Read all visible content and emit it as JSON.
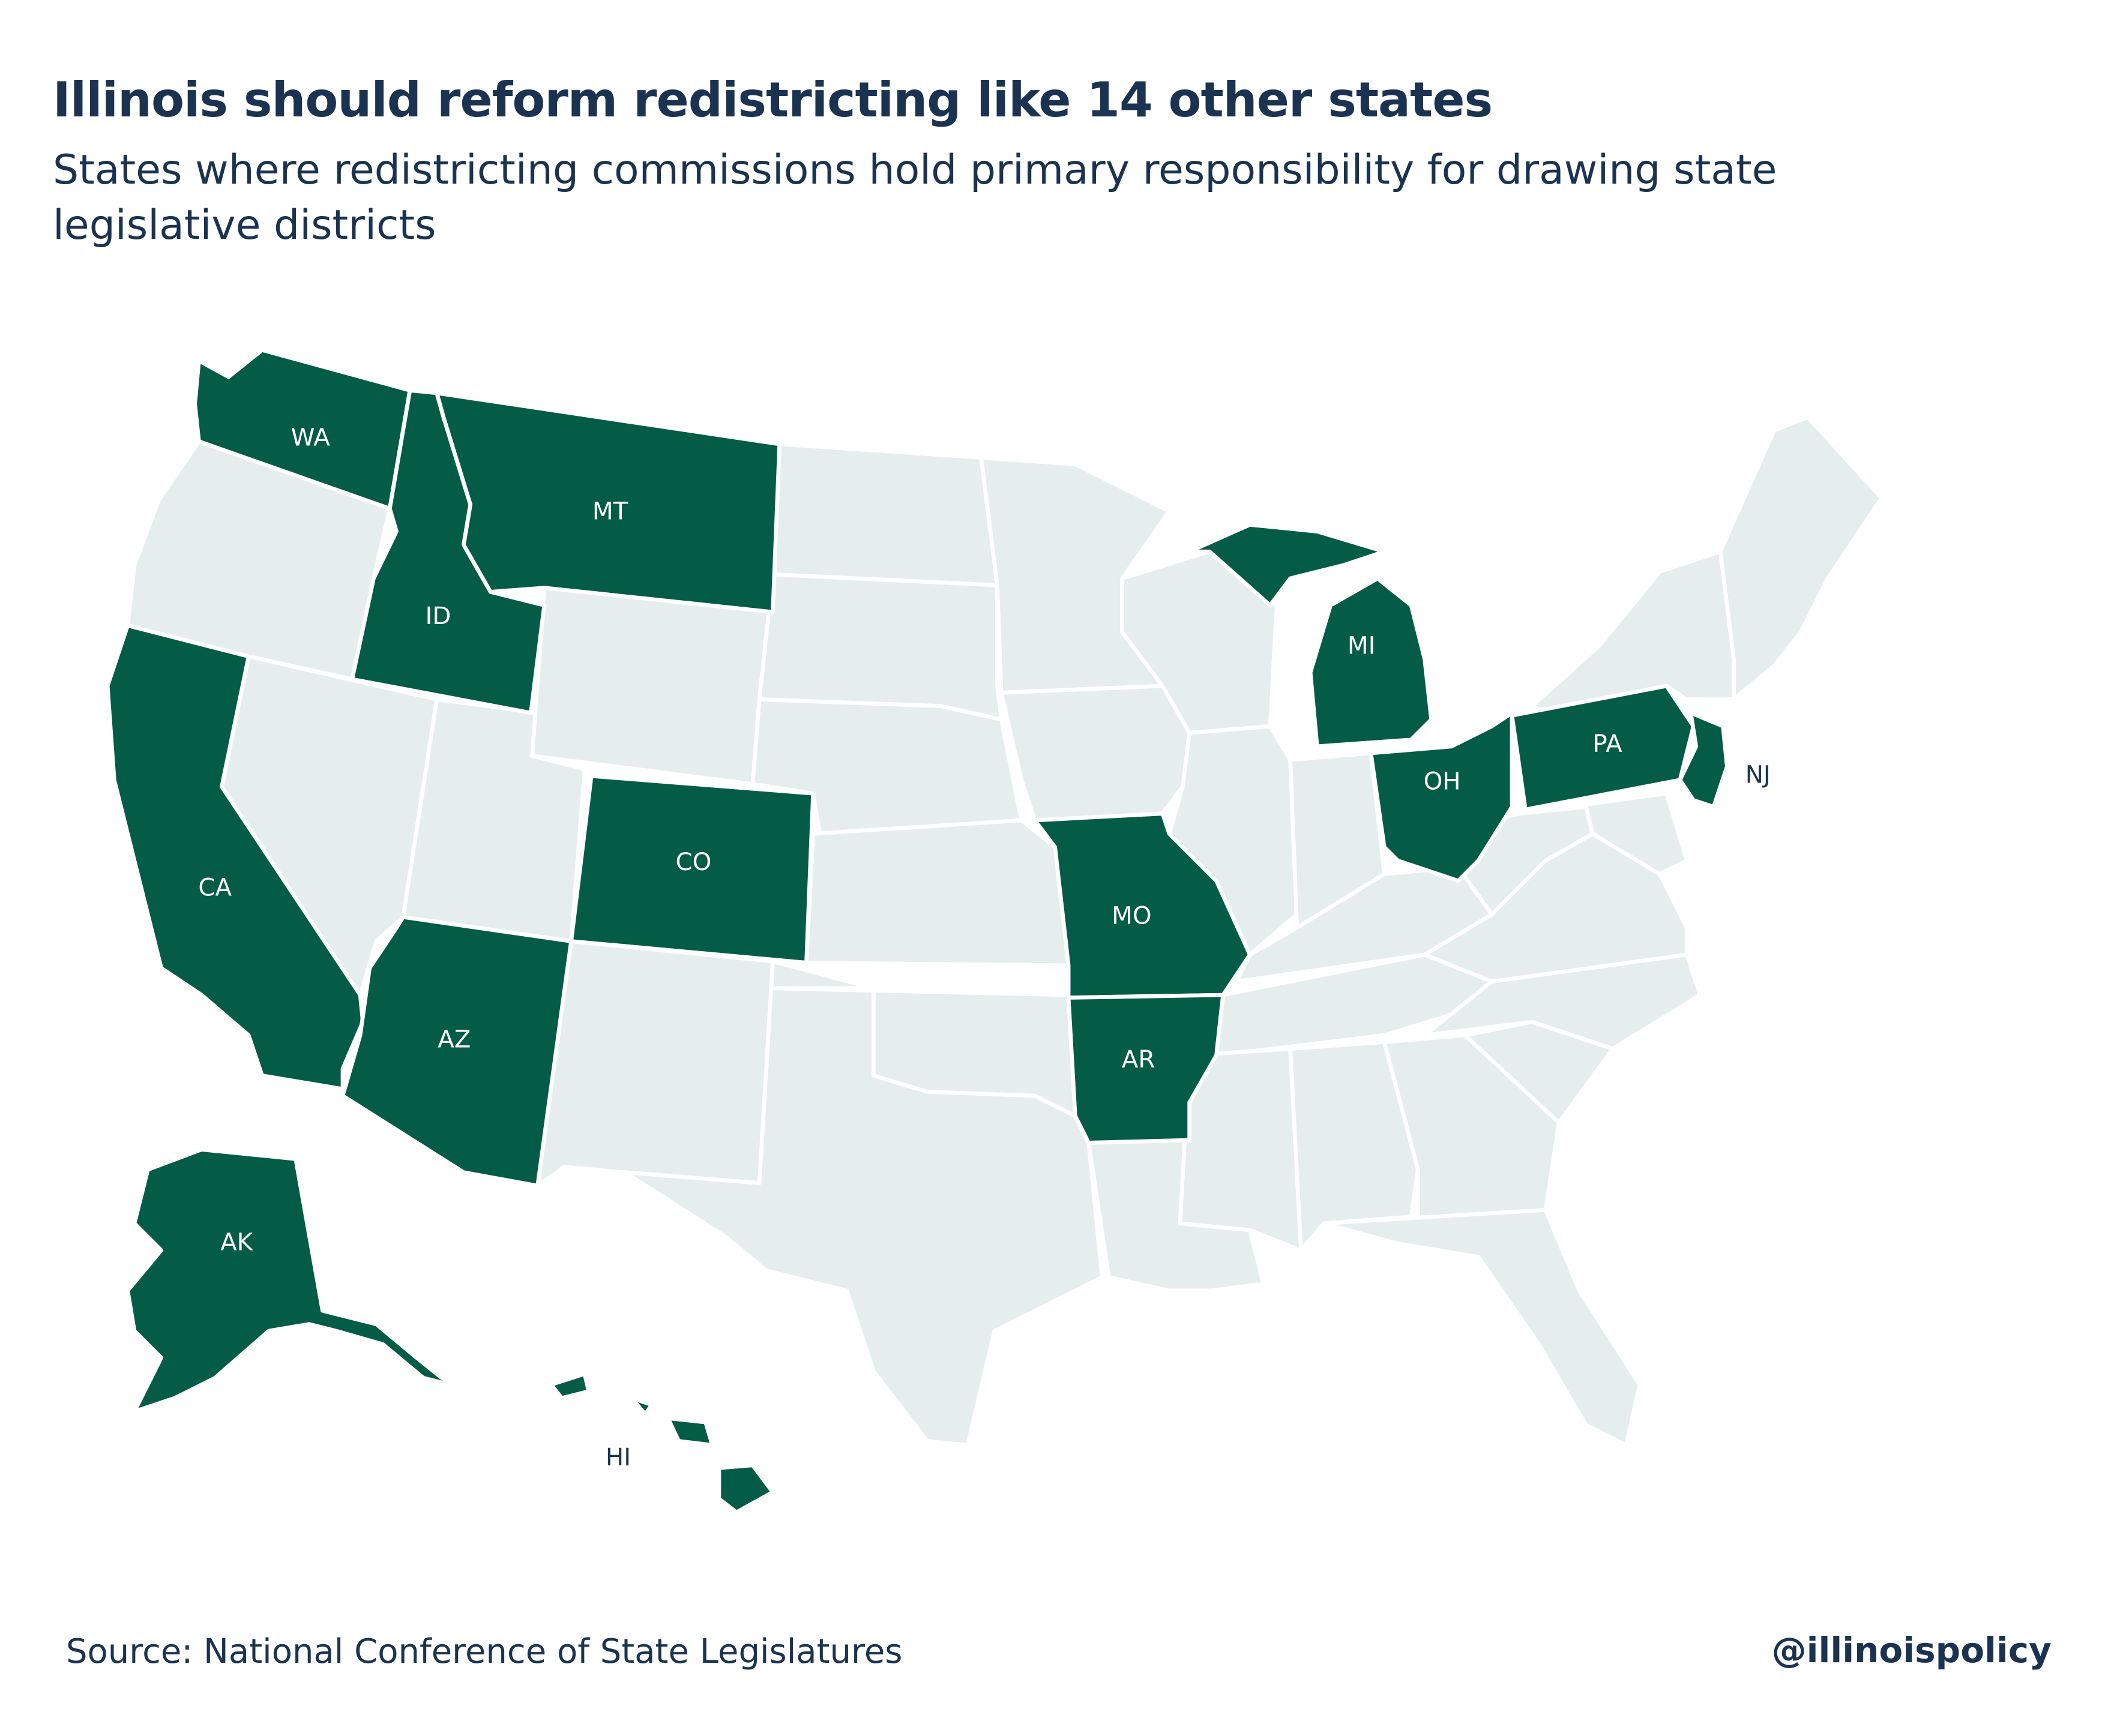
{
  "header": {
    "title": "Illinois should reform redistricting like 14 other states",
    "subtitle": "States where redistricting commissions hold primary responsibility for drawing state legislative districts"
  },
  "map": {
    "highlight_color": "#045c47",
    "base_color": "#e5eded",
    "border_color": "#ffffff",
    "label_color_on_highlight": "#ffffff",
    "label_color_outside": "#1b3350",
    "commission_states": [
      "WA",
      "MT",
      "ID",
      "CA",
      "CO",
      "AZ",
      "MO",
      "AR",
      "MI",
      "OH",
      "PA",
      "NJ",
      "AK",
      "HI"
    ],
    "labels": {
      "WA": "WA",
      "MT": "MT",
      "ID": "ID",
      "CA": "CA",
      "CO": "CO",
      "AZ": "AZ",
      "MO": "MO",
      "AR": "AR",
      "MI": "MI",
      "OH": "OH",
      "PA": "PA",
      "NJ": "NJ",
      "AK": "AK",
      "HI": "HI"
    }
  },
  "footer": {
    "source": "Source: National Conference of State Legislatures",
    "handle": "@illinoispolicy"
  }
}
